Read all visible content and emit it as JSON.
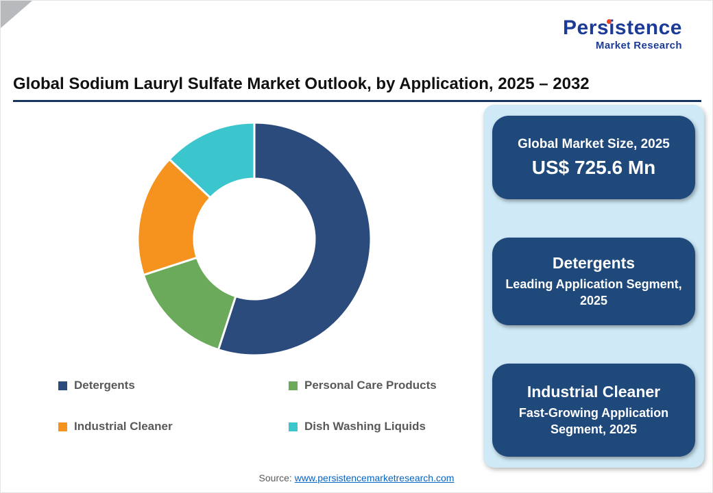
{
  "logo": {
    "name": "Persistence",
    "tagline": "Market Research"
  },
  "chart_data": {
    "type": "pie",
    "donut": true,
    "title": "Global Sodium Lauryl Sulfate Market Outlook, by Application, 2025 – 2032",
    "start_angle_deg": -90,
    "direction": "clockwise",
    "legend_position": "bottom",
    "values_note": "percent share of donut, estimated from arc angles",
    "segments": [
      {
        "label": "Detergents",
        "value": 55,
        "color": "#2B4B7D"
      },
      {
        "label": "Personal Care Products",
        "value": 15,
        "color": "#6BA95B"
      },
      {
        "label": "Industrial Cleaner",
        "value": 17,
        "color": "#F6921E"
      },
      {
        "label": "Dish Washing Liquids",
        "value": 13,
        "color": "#3BC6CE"
      }
    ]
  },
  "panel": {
    "cards": [
      {
        "title": "Global Market Size, 2025",
        "value": "US$ 725.6 Mn"
      },
      {
        "title": "Detergents",
        "subtitle": "Leading Application Segment, 2025"
      },
      {
        "title": "Industrial Cleaner",
        "subtitle": "Fast-Growing Application Segment, 2025"
      }
    ]
  },
  "source": {
    "prefix": "Source:",
    "link_text": "www.persistencemarketresearch.com"
  },
  "colors": {
    "accent_navy": "#20497B",
    "panel_bg": "#CFE9F6",
    "rule_navy": "#17365D",
    "link_blue": "#0563C1",
    "logo_navy": "#1B3B97",
    "logo_red": "#E8432D"
  }
}
